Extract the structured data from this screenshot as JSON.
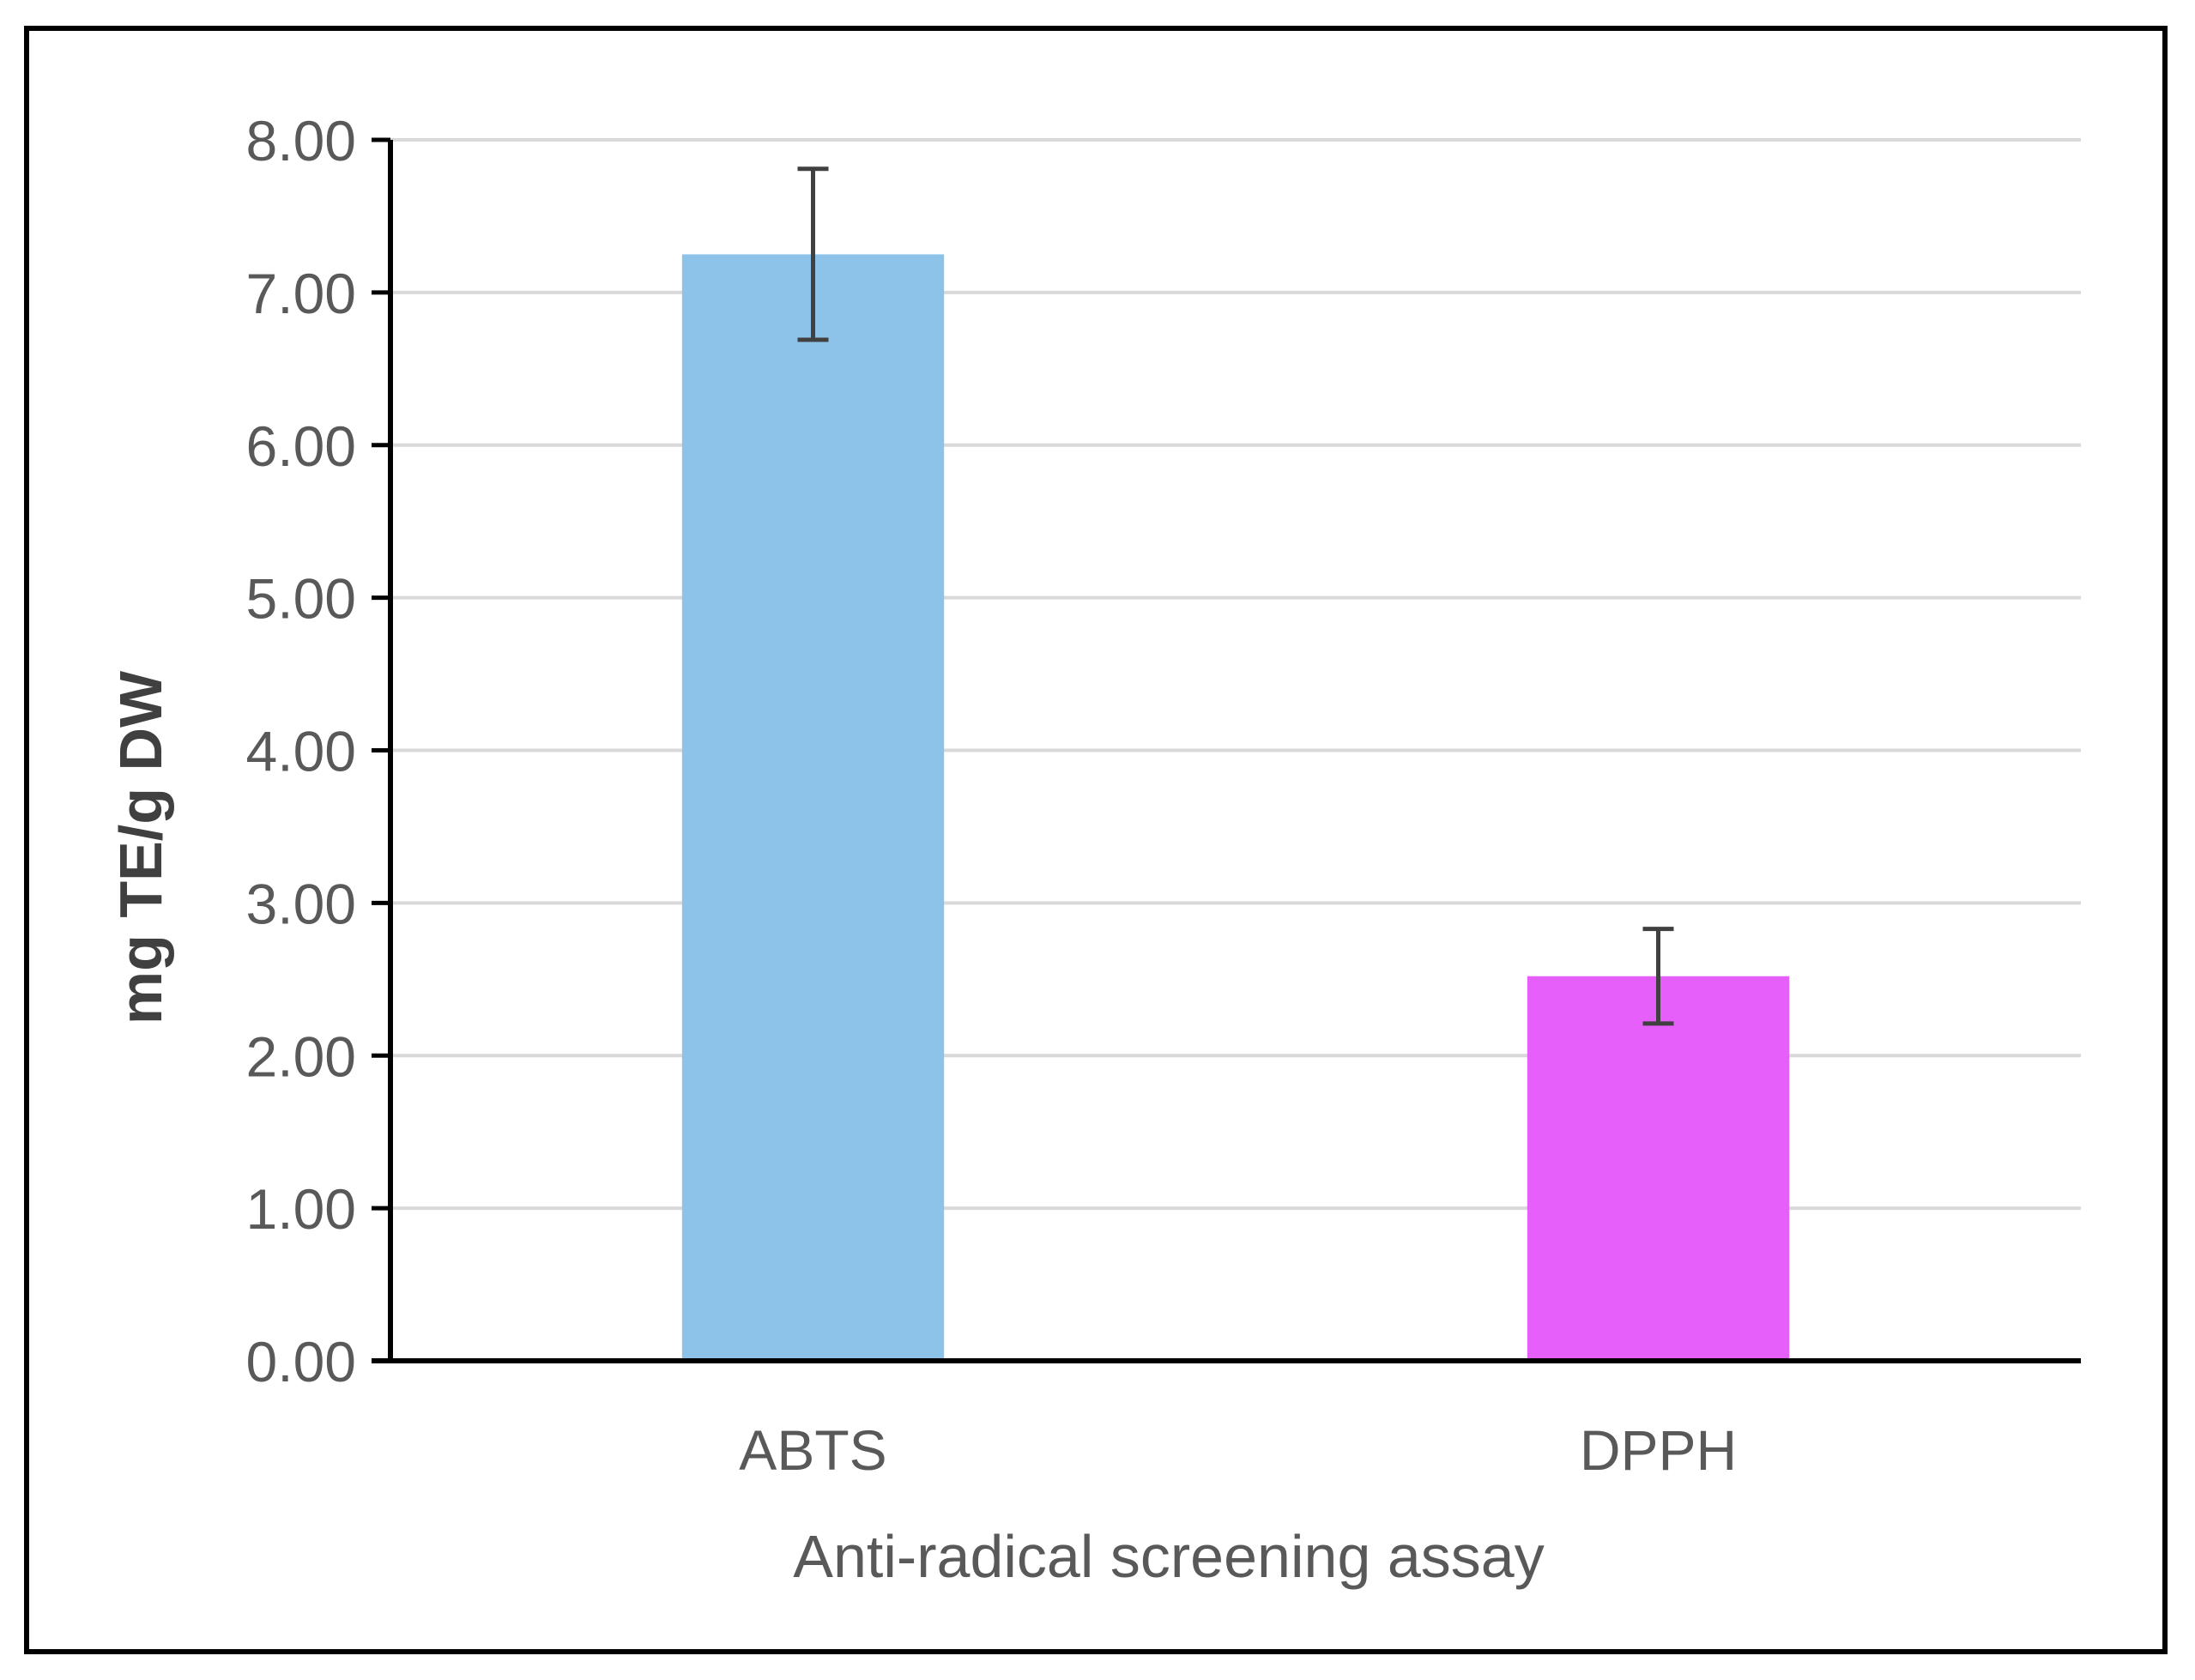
{
  "chart_data": {
    "type": "bar",
    "title": "",
    "xlabel": "Anti-radical screening assay",
    "ylabel": "mg TE/g DW",
    "categories": [
      "ABTS",
      "DPPH"
    ],
    "values": [
      7.25,
      2.52
    ],
    "errors": [
      0.56,
      0.31
    ],
    "bar_colors": [
      "#8DC3E9",
      "#E65FFB"
    ],
    "ylim": [
      0,
      8
    ],
    "yticks": [
      "0.00",
      "1.00",
      "2.00",
      "3.00",
      "4.00",
      "5.00",
      "6.00",
      "7.00",
      "8.00"
    ],
    "grid": true,
    "legend": "none"
  },
  "colors": {
    "grid": "#D9D9D9",
    "axis": "#000000",
    "text": "#595959",
    "error_bar": "#404040"
  }
}
